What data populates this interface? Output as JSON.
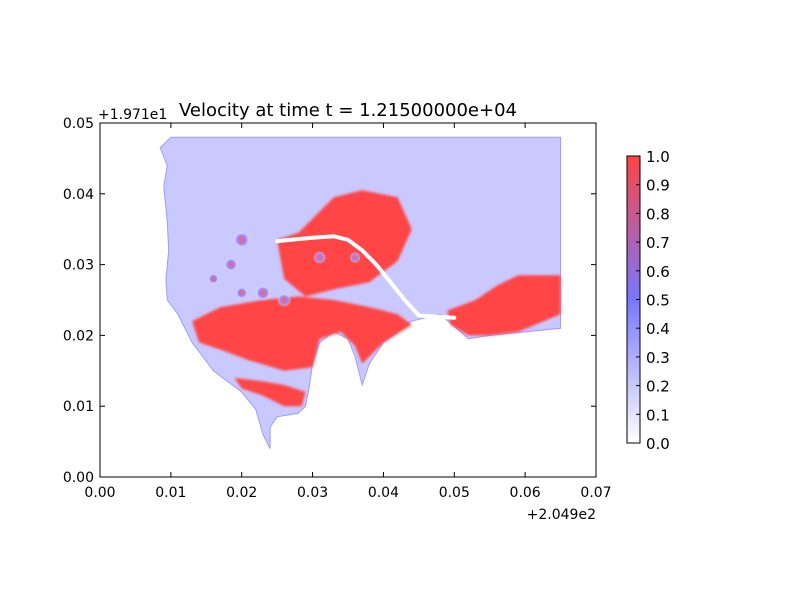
{
  "chart_data": {
    "type": "heatmap",
    "title": "Velocity at time t = 1.21500000e+04",
    "xlabel": "",
    "ylabel": "",
    "x_offset_label": "+2.049e2",
    "y_offset_label": "+1.971e1",
    "xlim": [
      0.0,
      0.07
    ],
    "ylim": [
      0.0,
      0.05
    ],
    "x_ticks": [
      "0.00",
      "0.01",
      "0.02",
      "0.03",
      "0.04",
      "0.05",
      "0.06",
      "0.07"
    ],
    "y_ticks": [
      "0.00",
      "0.01",
      "0.02",
      "0.03",
      "0.04",
      "0.05"
    ],
    "colorbar": {
      "range": [
        0.0,
        1.0
      ],
      "ticks": [
        "0.0",
        "0.1",
        "0.2",
        "0.3",
        "0.4",
        "0.5",
        "0.6",
        "0.7",
        "0.8",
        "0.9",
        "1.0"
      ],
      "colors": {
        "low": "#ffffff",
        "mid": "#7777ff",
        "high": "#ff4444"
      }
    },
    "grid": false,
    "domain_outline": [
      [
        0.01,
        0.048
      ],
      [
        0.065,
        0.048
      ],
      [
        0.065,
        0.021
      ],
      [
        0.06,
        0.0205
      ],
      [
        0.055,
        0.02
      ],
      [
        0.052,
        0.0195
      ],
      [
        0.048,
        0.023
      ],
      [
        0.044,
        0.022
      ],
      [
        0.04,
        0.019
      ],
      [
        0.038,
        0.016
      ],
      [
        0.037,
        0.013
      ],
      [
        0.036,
        0.017
      ],
      [
        0.035,
        0.0195
      ],
      [
        0.033,
        0.0205
      ],
      [
        0.031,
        0.019
      ],
      [
        0.03,
        0.016
      ],
      [
        0.0295,
        0.0125
      ],
      [
        0.029,
        0.01
      ],
      [
        0.028,
        0.009
      ],
      [
        0.025,
        0.0085
      ],
      [
        0.024,
        0.007
      ],
      [
        0.024,
        0.004
      ],
      [
        0.023,
        0.006
      ],
      [
        0.022,
        0.0095
      ],
      [
        0.02,
        0.012
      ],
      [
        0.016,
        0.015
      ],
      [
        0.013,
        0.019
      ],
      [
        0.011,
        0.023
      ],
      [
        0.0095,
        0.025
      ],
      [
        0.0093,
        0.028
      ],
      [
        0.0097,
        0.032
      ],
      [
        0.0095,
        0.036
      ],
      [
        0.009,
        0.041
      ],
      [
        0.0095,
        0.044
      ],
      [
        0.0085,
        0.0465
      ]
    ],
    "high_velocity_regions": [
      [
        [
          0.025,
          0.0335
        ],
        [
          0.028,
          0.0345
        ],
        [
          0.03,
          0.0365
        ],
        [
          0.033,
          0.0395
        ],
        [
          0.037,
          0.0405
        ],
        [
          0.042,
          0.0395
        ],
        [
          0.044,
          0.035
        ],
        [
          0.042,
          0.0305
        ],
        [
          0.038,
          0.0275
        ],
        [
          0.033,
          0.0265
        ],
        [
          0.029,
          0.0255
        ],
        [
          0.026,
          0.028
        ]
      ],
      [
        [
          0.013,
          0.022
        ],
        [
          0.017,
          0.024
        ],
        [
          0.023,
          0.025
        ],
        [
          0.028,
          0.0255
        ],
        [
          0.033,
          0.025
        ],
        [
          0.038,
          0.024
        ],
        [
          0.042,
          0.023
        ],
        [
          0.044,
          0.0215
        ],
        [
          0.04,
          0.019
        ],
        [
          0.037,
          0.016
        ],
        [
          0.036,
          0.0185
        ],
        [
          0.034,
          0.0205
        ],
        [
          0.031,
          0.0195
        ],
        [
          0.03,
          0.0155
        ],
        [
          0.026,
          0.015
        ],
        [
          0.021,
          0.0165
        ],
        [
          0.017,
          0.018
        ],
        [
          0.014,
          0.019
        ]
      ],
      [
        [
          0.019,
          0.014
        ],
        [
          0.023,
          0.0135
        ],
        [
          0.026,
          0.013
        ],
        [
          0.029,
          0.012
        ],
        [
          0.0285,
          0.01
        ],
        [
          0.026,
          0.01
        ],
        [
          0.023,
          0.0115
        ],
        [
          0.02,
          0.0125
        ]
      ],
      [
        [
          0.049,
          0.0235
        ],
        [
          0.053,
          0.025
        ],
        [
          0.056,
          0.027
        ],
        [
          0.059,
          0.0285
        ],
        [
          0.065,
          0.0285
        ],
        [
          0.065,
          0.023
        ],
        [
          0.059,
          0.0205
        ],
        [
          0.055,
          0.02
        ],
        [
          0.052,
          0.02
        ],
        [
          0.0495,
          0.0215
        ]
      ]
    ],
    "vortices": [
      [
        0.02,
        0.0335,
        0.0012
      ],
      [
        0.0185,
        0.03,
        0.001
      ],
      [
        0.023,
        0.026,
        0.0011
      ],
      [
        0.02,
        0.026,
        0.0009
      ],
      [
        0.026,
        0.025,
        0.001
      ],
      [
        0.031,
        0.031,
        0.0009
      ],
      [
        0.016,
        0.028,
        0.0008
      ],
      [
        0.036,
        0.031,
        0.0008
      ]
    ],
    "streamline": [
      [
        0.025,
        0.0333
      ],
      [
        0.027,
        0.0335
      ],
      [
        0.03,
        0.0338
      ],
      [
        0.033,
        0.034
      ],
      [
        0.035,
        0.0335
      ],
      [
        0.037,
        0.032
      ],
      [
        0.039,
        0.03
      ],
      [
        0.041,
        0.0275
      ],
      [
        0.043,
        0.025
      ],
      [
        0.045,
        0.0228
      ],
      [
        0.05,
        0.0225
      ]
    ]
  }
}
